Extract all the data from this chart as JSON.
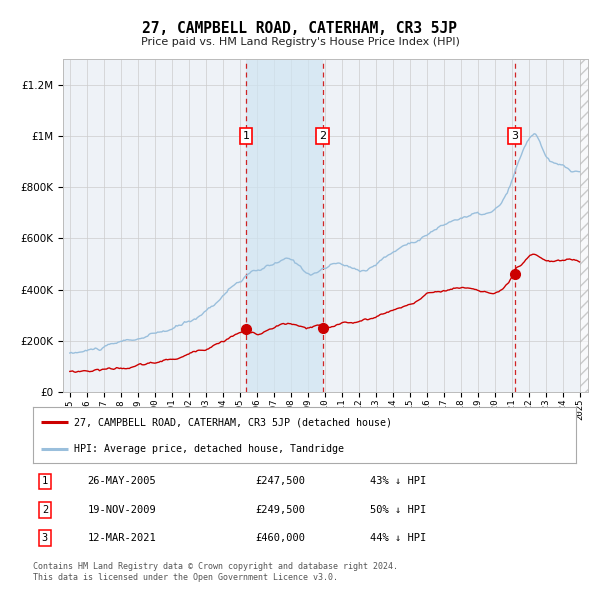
{
  "title": "27, CAMPBELL ROAD, CATERHAM, CR3 5JP",
  "subtitle": "Price paid vs. HM Land Registry's House Price Index (HPI)",
  "legend_label_red": "27, CAMPBELL ROAD, CATERHAM, CR3 5JP (detached house)",
  "legend_label_blue": "HPI: Average price, detached house, Tandridge",
  "footer1": "Contains HM Land Registry data © Crown copyright and database right 2024.",
  "footer2": "This data is licensed under the Open Government Licence v3.0.",
  "transactions": [
    {
      "num": 1,
      "date": "26-MAY-2005",
      "price": 247500,
      "hpi_pct": "43% ↓ HPI",
      "x_year": 2005.38
    },
    {
      "num": 2,
      "date": "19-NOV-2009",
      "price": 249500,
      "hpi_pct": "50% ↓ HPI",
      "x_year": 2009.88
    },
    {
      "num": 3,
      "date": "12-MAR-2021",
      "price": 460000,
      "hpi_pct": "44% ↓ HPI",
      "x_year": 2021.19
    }
  ],
  "ylim": [
    0,
    1300000
  ],
  "xlim": [
    1994.6,
    2025.5
  ],
  "yticks": [
    0,
    200000,
    400000,
    600000,
    800000,
    1000000,
    1200000
  ],
  "xticks": [
    1995,
    1996,
    1997,
    1998,
    1999,
    2000,
    2001,
    2002,
    2003,
    2004,
    2005,
    2006,
    2007,
    2008,
    2009,
    2010,
    2011,
    2012,
    2013,
    2014,
    2015,
    2016,
    2017,
    2018,
    2019,
    2020,
    2021,
    2022,
    2023,
    2024,
    2025
  ],
  "hpi_color": "#9abfdc",
  "hpi_fill": "#daeaf5",
  "red_color": "#cc0000",
  "vline_color": "#cc0000",
  "bg_color": "#eef2f7",
  "grid_color": "#cccccc",
  "shade_color": "#d0e4f2"
}
